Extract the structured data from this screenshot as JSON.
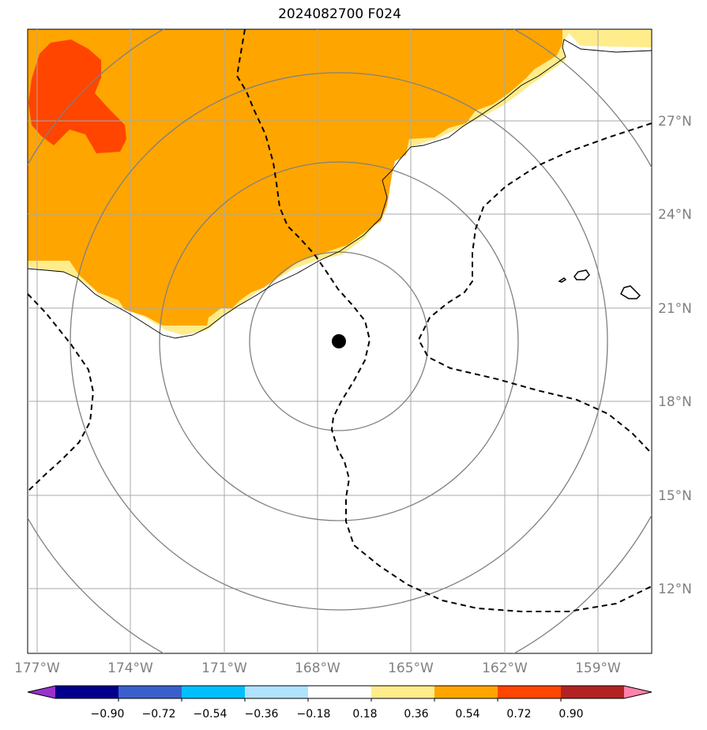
{
  "title": "2024082700 F024",
  "lon_ticks": [
    "177°W",
    "174°W",
    "171°W",
    "168°W",
    "165°W",
    "162°W",
    "159°W"
  ],
  "lat_ticks": [
    "27°N",
    "24°N",
    "21°N",
    "18°N",
    "15°N",
    "12°N"
  ],
  "colorbar": {
    "ticks": [
      "−0.90",
      "−0.72",
      "−0.54",
      "−0.36",
      "−0.18",
      "0.18",
      "0.36",
      "0.54",
      "0.72",
      "0.90"
    ],
    "colors": [
      "#9932cc",
      "#00008b",
      "#3a5fcd",
      "#00bfff",
      "#b0e2ff",
      "#ffffff",
      "#ffec8b",
      "#ffa500",
      "#ff4500",
      "#b22222",
      "#ff82ab"
    ],
    "extend": "both"
  },
  "map": {
    "center_marker": "storm-center-dot",
    "range_rings": 4,
    "fill_colors": {
      "light": "#ffec8b",
      "mid": "#ffa500",
      "high": "#ff4500"
    },
    "contour_style": "dashed",
    "features": [
      "islands",
      "range-rings",
      "lat-lon-grid"
    ]
  }
}
